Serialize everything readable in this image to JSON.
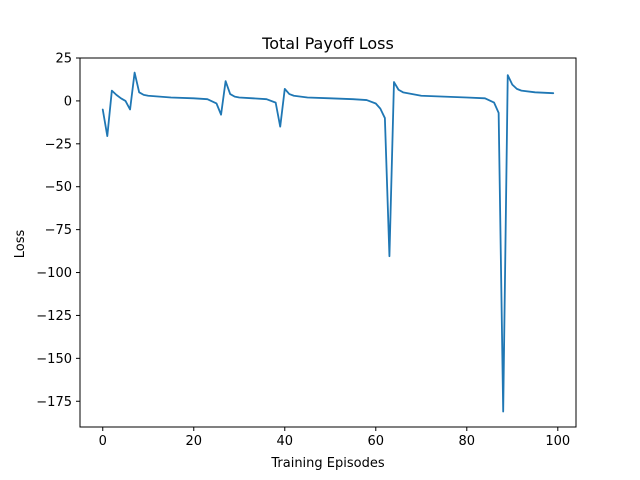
{
  "chart_data": {
    "type": "line",
    "title": "Total Payoff Loss",
    "xlabel": "Training Episodes",
    "ylabel": "Loss",
    "xlim": [
      -5,
      104
    ],
    "ylim": [
      -190,
      25
    ],
    "x_ticks": [
      0,
      20,
      40,
      60,
      80,
      100
    ],
    "y_ticks": [
      25,
      0,
      -25,
      -50,
      -75,
      -100,
      -125,
      -150,
      -175
    ],
    "x_tick_labels": [
      "0",
      "20",
      "40",
      "60",
      "80",
      "100"
    ],
    "y_tick_labels": [
      "25",
      "0",
      "−25",
      "−50",
      "−75",
      "−100",
      "−125",
      "−150",
      "−175"
    ],
    "grid": false,
    "line_color": "#1f77b4",
    "series": [
      {
        "x": [
          0,
          1,
          2,
          3,
          4,
          5,
          6,
          7,
          8,
          9,
          10,
          15,
          20,
          23,
          25,
          26,
          27,
          28,
          29,
          30,
          33,
          36,
          38,
          39,
          40,
          41,
          42,
          45,
          50,
          55,
          58,
          60,
          61,
          62,
          63,
          64,
          65,
          66,
          70,
          75,
          80,
          84,
          86,
          87,
          88,
          89,
          90,
          91,
          92,
          95,
          99
        ],
        "y": [
          -5,
          -20.5,
          6,
          3.5,
          1.5,
          0,
          -5,
          16.5,
          5,
          3.5,
          3,
          2,
          1.5,
          1,
          -1.5,
          -8,
          11.5,
          4,
          2.5,
          2,
          1.5,
          1,
          -1,
          -15,
          7,
          4,
          3,
          2,
          1.5,
          1,
          0.5,
          -1.5,
          -4.5,
          -10,
          -90.5,
          11,
          6.5,
          5,
          3,
          2.5,
          2,
          1.5,
          -1,
          -7,
          -181,
          15,
          9.5,
          7,
          6,
          5,
          4.5
        ]
      }
    ]
  }
}
